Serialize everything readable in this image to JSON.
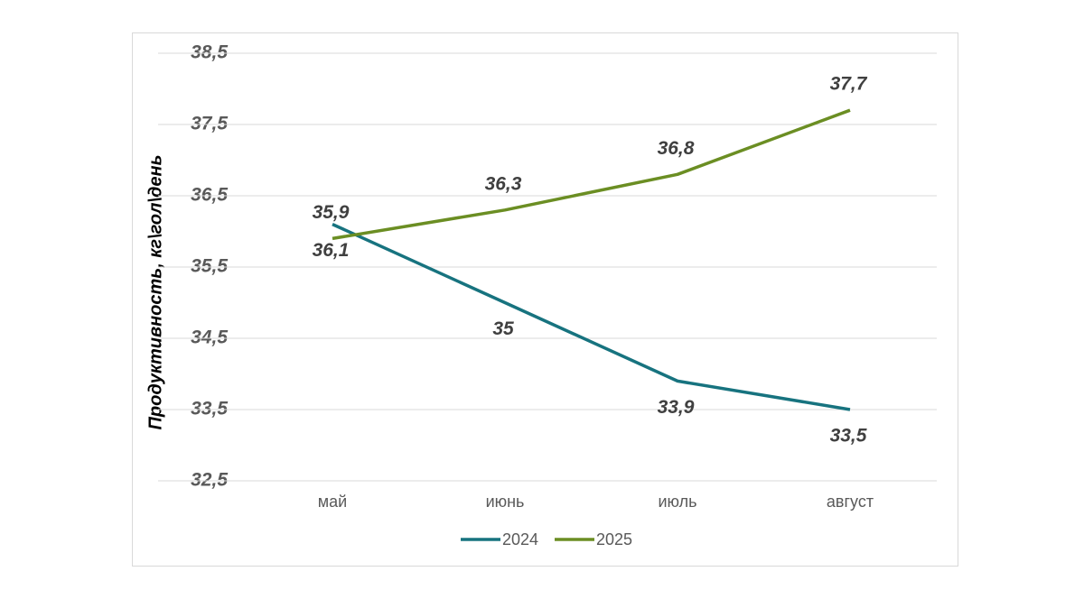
{
  "chart_data": {
    "type": "line",
    "y_label": "Продуктивность, кг\\гол\\день",
    "categories": [
      "май",
      "июнь",
      "июль",
      "август"
    ],
    "series": [
      {
        "name": "2024",
        "color": "#17737f",
        "values": [
          36.1,
          35,
          33.9,
          33.5
        ],
        "value_labels": [
          "36,1",
          "35",
          "33,9",
          "33,5"
        ]
      },
      {
        "name": "2025",
        "color": "#6b8e23",
        "values": [
          35.9,
          36.3,
          36.8,
          37.7
        ],
        "value_labels": [
          "35,9",
          "36,3",
          "36,8",
          "37,7"
        ]
      }
    ],
    "ylim": [
      32.5,
      38.5
    ],
    "yticks": [
      {
        "value": 32.5,
        "label": "32,5"
      },
      {
        "value": 33.5,
        "label": "33,5"
      },
      {
        "value": 34.5,
        "label": "34,5"
      },
      {
        "value": 35.5,
        "label": "35,5"
      },
      {
        "value": 36.5,
        "label": "36,5"
      },
      {
        "value": 37.5,
        "label": "37,5"
      },
      {
        "value": 38.5,
        "label": "38,5"
      }
    ],
    "grid": true,
    "legend": "bottom"
  }
}
